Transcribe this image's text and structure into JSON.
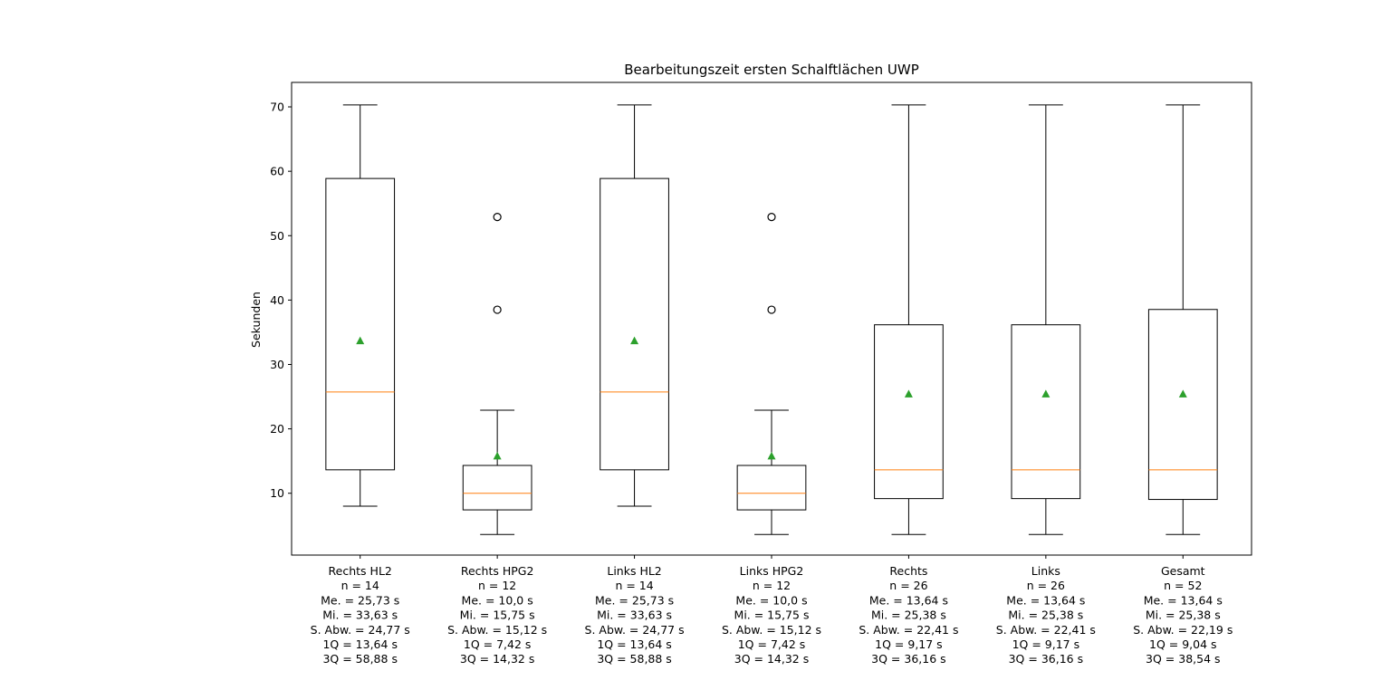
{
  "chart_data": {
    "type": "boxplot",
    "title": "Bearbeitungszeit ersten Schalftlächen UWP",
    "ylabel": "Sekunden",
    "xlabel": "",
    "ylim": [
      0.4,
      73.8
    ],
    "yticks": [
      10,
      20,
      30,
      40,
      50,
      60,
      70
    ],
    "grid": false,
    "colors": {
      "box": "#000000",
      "median": "#ff7f0e",
      "mean": "#2ca02c",
      "flier": "#000000"
    },
    "categories": [
      {
        "name": "Rechts HL2",
        "label_lines": [
          "Rechts HL2",
          "n = 14",
          "Me. = 25,73 s",
          "Mi. = 33,63 s",
          "S. Abw. = 24,77 s",
          "1Q = 13,64 s",
          "3Q = 58,88 s"
        ],
        "whisker_low": 8.0,
        "q1": 13.64,
        "median": 25.73,
        "q3": 58.88,
        "whisker_high": 70.3,
        "mean": 33.63,
        "fliers": []
      },
      {
        "name": "Rechts HPG2",
        "label_lines": [
          "Rechts HPG2",
          "n = 12",
          "Me. = 10,0 s",
          "Mi. = 15,75 s",
          "S. Abw. = 15,12 s",
          "1Q = 7,42 s",
          "3Q = 14,32 s"
        ],
        "whisker_low": 3.6,
        "q1": 7.42,
        "median": 10.0,
        "q3": 14.32,
        "whisker_high": 22.9,
        "mean": 15.75,
        "fliers": [
          38.5,
          52.9
        ]
      },
      {
        "name": "Links HL2",
        "label_lines": [
          "Links HL2",
          "n = 14",
          "Me. = 25,73 s",
          "Mi. = 33,63 s",
          "S. Abw. = 24,77 s",
          "1Q = 13,64 s",
          "3Q = 58,88 s"
        ],
        "whisker_low": 8.0,
        "q1": 13.64,
        "median": 25.73,
        "q3": 58.88,
        "whisker_high": 70.3,
        "mean": 33.63,
        "fliers": []
      },
      {
        "name": "Links HPG2",
        "label_lines": [
          "Links HPG2",
          "n = 12",
          "Me. = 10,0 s",
          "Mi. = 15,75 s",
          "S. Abw. = 15,12 s",
          "1Q = 7,42 s",
          "3Q = 14,32 s"
        ],
        "whisker_low": 3.6,
        "q1": 7.42,
        "median": 10.0,
        "q3": 14.32,
        "whisker_high": 22.9,
        "mean": 15.75,
        "fliers": [
          38.5,
          52.9
        ]
      },
      {
        "name": "Rechts",
        "label_lines": [
          "Rechts",
          "n = 26",
          "Me. = 13,64 s",
          "Mi. = 25,38 s",
          "S. Abw. = 22,41 s",
          "1Q = 9,17 s",
          "3Q = 36,16 s"
        ],
        "whisker_low": 3.6,
        "q1": 9.17,
        "median": 13.64,
        "q3": 36.16,
        "whisker_high": 70.3,
        "mean": 25.38,
        "fliers": []
      },
      {
        "name": "Links",
        "label_lines": [
          "Links",
          "n = 26",
          "Me. = 13,64 s",
          "Mi. = 25,38 s",
          "S. Abw. = 22,41 s",
          "1Q = 9,17 s",
          "3Q = 36,16 s"
        ],
        "whisker_low": 3.6,
        "q1": 9.17,
        "median": 13.64,
        "q3": 36.16,
        "whisker_high": 70.3,
        "mean": 25.38,
        "fliers": []
      },
      {
        "name": "Gesamt",
        "label_lines": [
          "Gesamt",
          "n = 52",
          "Me. = 13,64 s",
          "Mi. = 25,38 s",
          "S. Abw. = 22,19 s",
          "1Q = 9,04 s",
          "3Q = 38,54 s"
        ],
        "whisker_low": 3.6,
        "q1": 9.04,
        "median": 13.64,
        "q3": 38.54,
        "whisker_high": 70.3,
        "mean": 25.38,
        "fliers": []
      }
    ]
  }
}
